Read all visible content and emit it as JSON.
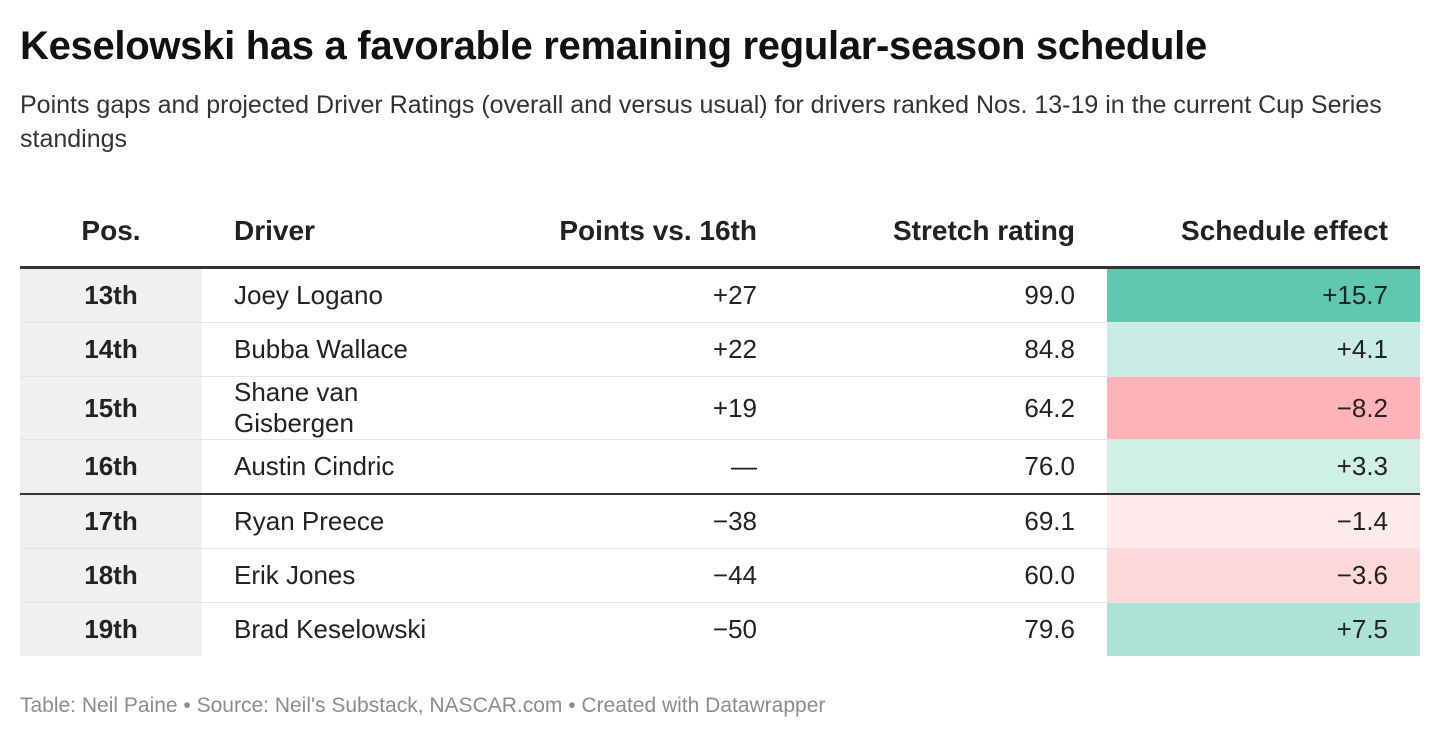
{
  "header": {
    "title": "Keselowski has a favorable remaining regular-season schedule",
    "subtitle": "Points gaps and projected Driver Ratings (overall and versus usual) for drivers ranked Nos. 13-19 in the current Cup Series standings"
  },
  "chart_data": {
    "type": "table",
    "columns": [
      "Pos.",
      "Driver",
      "Points vs. 16th",
      "Stretch rating",
      "Schedule effect"
    ],
    "rows": [
      {
        "pos": "13th",
        "driver": "Joey Logano",
        "points": "+27",
        "stretch": "99.0",
        "effect": "+15.7",
        "effect_value": 15.7
      },
      {
        "pos": "14th",
        "driver": "Bubba Wallace",
        "points": "+22",
        "stretch": "84.8",
        "effect": "+4.1",
        "effect_value": 4.1
      },
      {
        "pos": "15th",
        "driver": "Shane van Gisbergen",
        "points": "+19",
        "stretch": "64.2",
        "effect": "−8.2",
        "effect_value": -8.2
      },
      {
        "pos": "16th",
        "driver": "Austin Cindric",
        "points": "—",
        "stretch": "76.0",
        "effect": "+3.3",
        "effect_value": 3.3
      },
      {
        "pos": "17th",
        "driver": "Ryan Preece",
        "points": "−38",
        "stretch": "69.1",
        "effect": "−1.4",
        "effect_value": -1.4
      },
      {
        "pos": "18th",
        "driver": "Erik Jones",
        "points": "−44",
        "stretch": "60.0",
        "effect": "−3.6",
        "effect_value": -3.6
      },
      {
        "pos": "19th",
        "driver": "Brad Keselowski",
        "points": "−50",
        "stretch": "79.6",
        "effect": "+7.5",
        "effect_value": 7.5
      }
    ],
    "cutoff_after_row": 3,
    "color_scale": {
      "positive": "#5ec8b0",
      "negative": "#ffb3b6",
      "max_abs": 15.7
    }
  },
  "footer": {
    "credit": "Table: Neil Paine • Source: Neil's Substack, NASCAR.com • Created with Datawrapper"
  }
}
